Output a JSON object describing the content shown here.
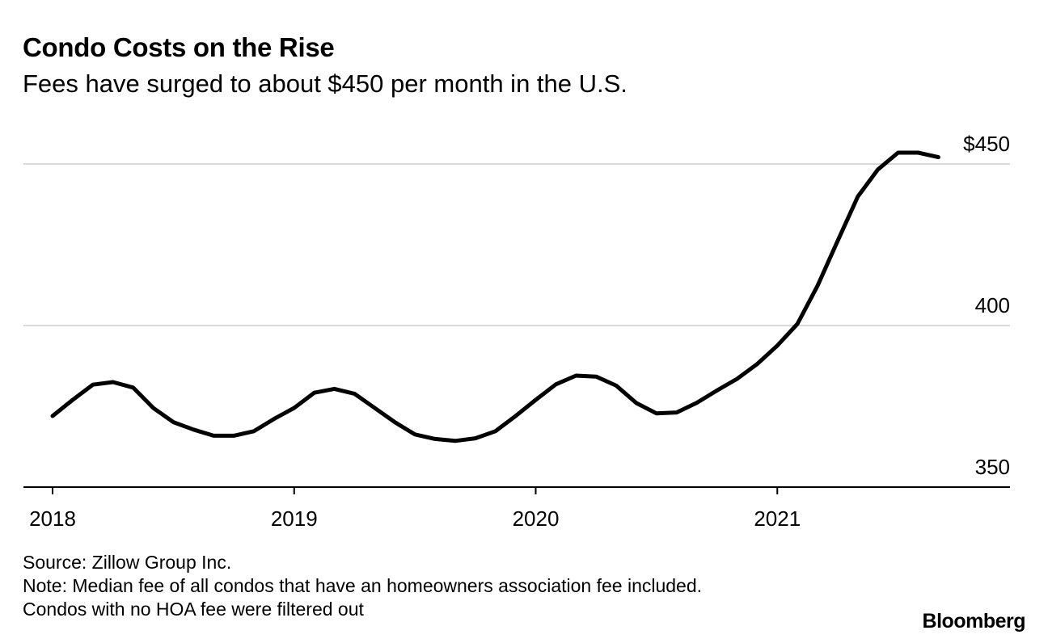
{
  "chart_data": {
    "type": "line",
    "title": "Condo Costs on the Rise",
    "subtitle": "Fees have surged to about $450 per month in the U.S.",
    "xlabel": "",
    "ylabel": "",
    "x_ticks": [
      "2018",
      "2019",
      "2020",
      "2021"
    ],
    "y_ticks": [
      {
        "value": 350,
        "label": "350"
      },
      {
        "value": 400,
        "label": "400"
      },
      {
        "value": 450,
        "label": "$450"
      }
    ],
    "xlim": [
      "2018-01",
      "2022-01"
    ],
    "ylim": [
      350,
      457
    ],
    "grid": "horizontal",
    "y_axis_side": "right",
    "line_color": "#000000",
    "grid_color": "#d9d9d9",
    "series": [
      {
        "x": [
          "2018-01",
          "2018-02",
          "2018-03",
          "2018-04",
          "2018-05",
          "2018-06",
          "2018-07",
          "2018-08",
          "2018-09",
          "2018-10",
          "2018-11",
          "2018-12",
          "2019-01",
          "2019-02",
          "2019-03",
          "2019-04",
          "2019-05",
          "2019-06",
          "2019-07",
          "2019-08",
          "2019-09",
          "2019-10",
          "2019-11",
          "2019-12",
          "2020-01",
          "2020-02",
          "2020-03",
          "2020-04",
          "2020-05",
          "2020-06",
          "2020-07",
          "2020-08",
          "2020-09",
          "2020-10",
          "2020-11",
          "2020-12",
          "2021-01",
          "2021-02",
          "2021-03",
          "2021-04",
          "2021-05",
          "2021-06",
          "2021-07",
          "2021-08",
          "2021-09"
        ],
        "values": [
          372,
          377,
          381.7,
          382.5,
          380.8,
          374.5,
          370.1,
          367.8,
          365.9,
          365.9,
          367.3,
          371.1,
          374.5,
          379.2,
          380.4,
          378.9,
          374.5,
          370.1,
          366.3,
          364.9,
          364.3,
          365.1,
          367.3,
          372,
          377,
          381.8,
          384.5,
          384.2,
          381.4,
          376,
          372.8,
          373.1,
          376.1,
          379.9,
          383.5,
          388.1,
          393.8,
          400.5,
          412.3,
          426.2,
          439.9,
          448.3,
          453.5,
          453.5,
          452.1
        ]
      }
    ]
  },
  "footer": {
    "source": "Source: Zillow Group Inc.",
    "note_line1": "Note: Median fee of all condos that have an homeowners association fee included.",
    "note_line2": "Condos with no HOA fee were filtered out"
  },
  "brand": "Bloomberg"
}
